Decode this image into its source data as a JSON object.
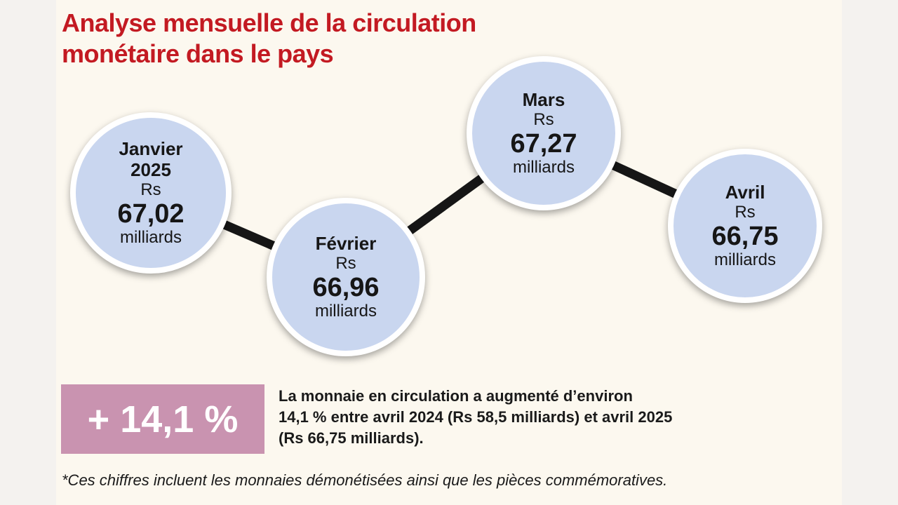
{
  "header": {
    "title": [
      "Analyse mensuelle de la circulation",
      "monétaire dans le pays"
    ]
  },
  "nodes": [
    {
      "label": [
        "Janvier",
        "2025"
      ],
      "currency": "Rs",
      "amount": "67,02",
      "unit": "milliards"
    },
    {
      "label": [
        "Février"
      ],
      "currency": "Rs",
      "amount": "66,96",
      "unit": "milliards"
    },
    {
      "label": [
        "Mars"
      ],
      "currency": "Rs",
      "amount": "67,27",
      "unit": "milliards"
    },
    {
      "label": [
        "Avril"
      ],
      "currency": "Rs",
      "amount": "66,75",
      "unit": "milliards"
    }
  ],
  "highlight": {
    "figure": "+ 14,1 %",
    "text": [
      "La monnaie en circulation a augmenté d’environ",
      "14,1 % entre avril 2024 (Rs 58,5 milliards) et avril 2025",
      "(Rs 66,75 milliards)."
    ]
  },
  "footnote": "*Ces chiffres incluent les monnaies démonétisées ainsi que les pièces commémoratives."
}
